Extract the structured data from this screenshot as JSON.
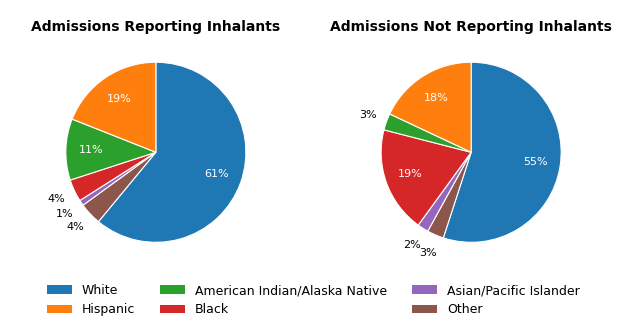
{
  "chart_data": [
    {
      "type": "pie",
      "title": "Admissions Reporting Inhalants",
      "categories": [
        "White",
        "Other",
        "Asian/Pacific Islander",
        "Black",
        "American Indian/Alaska Native",
        "Hispanic"
      ],
      "values": [
        61,
        4,
        1,
        4,
        11,
        19
      ],
      "value_labels": [
        "61%",
        "4%",
        "1%",
        "4%",
        "11%",
        "19%"
      ],
      "data_labels": true
    },
    {
      "type": "pie",
      "title": "Admissions Not Reporting Inhalants",
      "categories": [
        "White",
        "Other",
        "Asian/Pacific Islander",
        "Black",
        "American Indian/Alaska Native",
        "Hispanic"
      ],
      "values": [
        55,
        3,
        2,
        19,
        3,
        18
      ],
      "value_labels": [
        "55%",
        "3%",
        "2%",
        "19%",
        "3%",
        "18%"
      ],
      "data_labels": true
    }
  ],
  "legend": "lower center",
  "legend_labels": [
    "White",
    "Hispanic",
    "American Indian/Alaska Native",
    "Black",
    "Asian/Pacific Islander",
    "Other"
  ]
}
